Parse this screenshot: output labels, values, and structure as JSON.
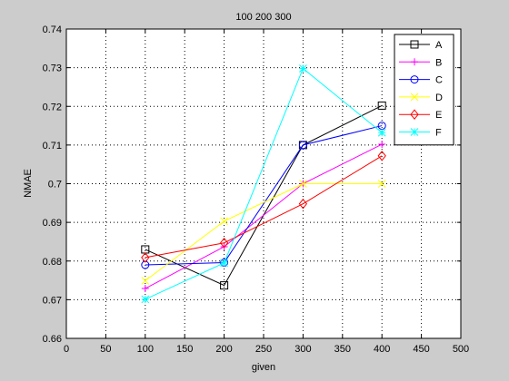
{
  "chart_data": {
    "type": "line",
    "title": "100 200 300",
    "xlabel": "given",
    "ylabel": "NMAE",
    "xlim": [
      0,
      500
    ],
    "ylim": [
      0.66,
      0.74
    ],
    "xticks": [
      0,
      50,
      100,
      150,
      200,
      250,
      300,
      350,
      400,
      450,
      500
    ],
    "yticks": [
      0.66,
      0.67,
      0.68,
      0.69,
      0.7,
      0.71,
      0.72,
      0.73,
      0.74
    ],
    "xtick_labels": [
      "0",
      "50",
      "100",
      "150",
      "200",
      "250",
      "300",
      "350",
      "400",
      "450",
      "500"
    ],
    "ytick_labels": [
      "0.66",
      "0.67",
      "0.68",
      "0.69",
      "0.7",
      "0.71",
      "0.72",
      "0.73",
      "0.74"
    ],
    "grid": true,
    "legend_position": "top-right",
    "x": [
      100,
      200,
      300,
      400
    ],
    "series": [
      {
        "name": "A",
        "color": "#000000",
        "marker": "square",
        "values": [
          0.683,
          0.6737,
          0.71,
          0.7202
        ]
      },
      {
        "name": "B",
        "color": "#ff00ff",
        "marker": "plus",
        "values": [
          0.6729,
          0.6837,
          0.7,
          0.7102
        ]
      },
      {
        "name": "C",
        "color": "#0000ff",
        "marker": "circle",
        "values": [
          0.679,
          0.6796,
          0.71,
          0.715
        ]
      },
      {
        "name": "D",
        "color": "#ffff00",
        "marker": "x",
        "values": [
          0.6749,
          0.6903,
          0.7,
          0.7
        ]
      },
      {
        "name": "E",
        "color": "#ff0000",
        "marker": "diamond",
        "values": [
          0.6809,
          0.6847,
          0.6948,
          0.7072
        ]
      },
      {
        "name": "F",
        "color": "#00ffff",
        "marker": "star",
        "values": [
          0.6701,
          0.6795,
          0.7298,
          0.7132
        ]
      }
    ]
  }
}
